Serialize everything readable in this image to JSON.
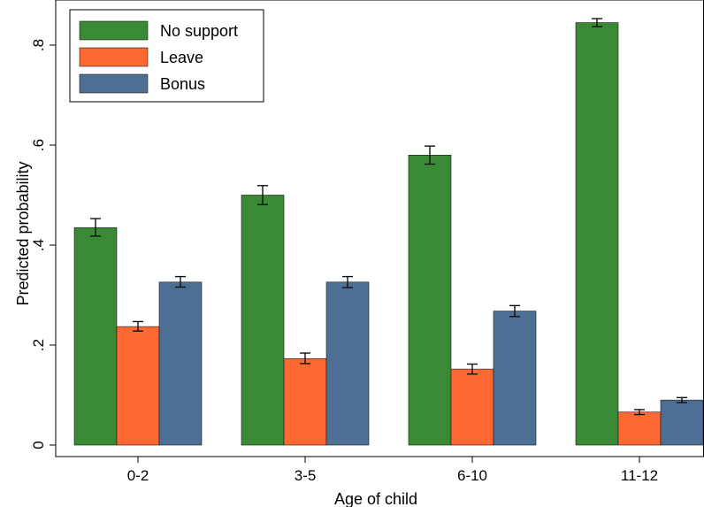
{
  "chart_data": {
    "type": "bar",
    "title": "",
    "xlabel": "Age of child",
    "ylabel": "Predicted probability",
    "categories": [
      "0-2",
      "3-5",
      "6-10",
      "11-12"
    ],
    "ylim": [
      0,
      0.9
    ],
    "yticks": [
      0,
      0.2,
      0.4,
      0.6,
      0.8
    ],
    "ytick_labels": [
      "0",
      ".2",
      ".4",
      ".6",
      ".8"
    ],
    "grid": "none",
    "legend": "top-left",
    "series": [
      {
        "name": "No support",
        "color": "#3a8a35",
        "values": [
          0.435,
          0.5,
          0.58,
          0.845
        ],
        "error_low": [
          0.418,
          0.481,
          0.562,
          0.837
        ],
        "error_high": [
          0.453,
          0.519,
          0.598,
          0.853
        ]
      },
      {
        "name": "Leave",
        "color": "#fd6833",
        "values": [
          0.237,
          0.173,
          0.152,
          0.066
        ],
        "error_low": [
          0.228,
          0.163,
          0.142,
          0.061
        ],
        "error_high": [
          0.247,
          0.184,
          0.162,
          0.071
        ]
      },
      {
        "name": "Bonus",
        "color": "#4d6f93",
        "values": [
          0.326,
          0.326,
          0.268,
          0.09
        ],
        "error_low": [
          0.316,
          0.315,
          0.257,
          0.085
        ],
        "error_high": [
          0.337,
          0.337,
          0.279,
          0.095
        ]
      }
    ]
  }
}
